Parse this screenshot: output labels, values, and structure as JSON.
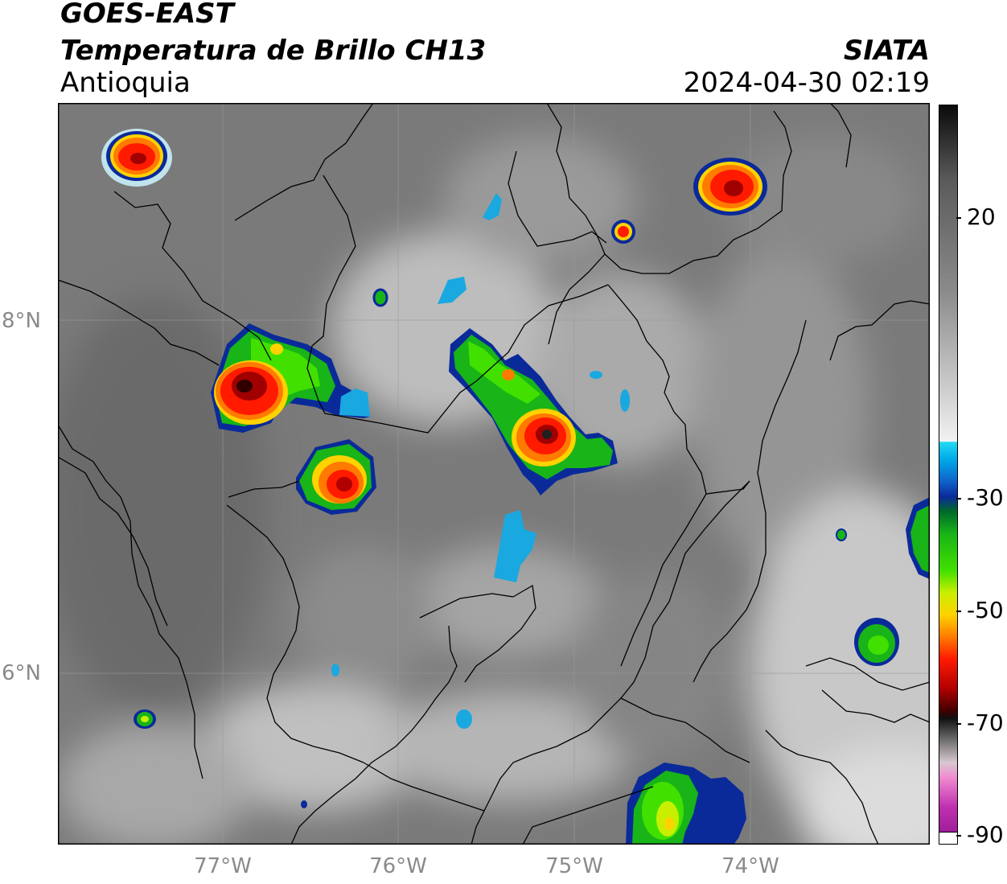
{
  "header": {
    "satellite": "GOES-EAST",
    "product": "Temperatura de Brillo CH13",
    "organization": "SIATA",
    "region": "Antioquia",
    "timestamp": "2024-04-30 02:19"
  },
  "map": {
    "lat_labels": [
      "8°N",
      "6°N"
    ],
    "lon_labels": [
      "77°W",
      "76°W",
      "75°W",
      "74°W"
    ]
  },
  "colorbar": {
    "tick_labels": [
      "20",
      "-30",
      "-50",
      "-70",
      "-90"
    ],
    "colors": {
      "warm_gray": "#8a8a8a",
      "cold_cyan": "#24d9f2",
      "green": "#18b418",
      "yellow": "#ffd200",
      "red": "#ff1a00",
      "black": "#101010",
      "magenta": "#c030b0"
    }
  }
}
